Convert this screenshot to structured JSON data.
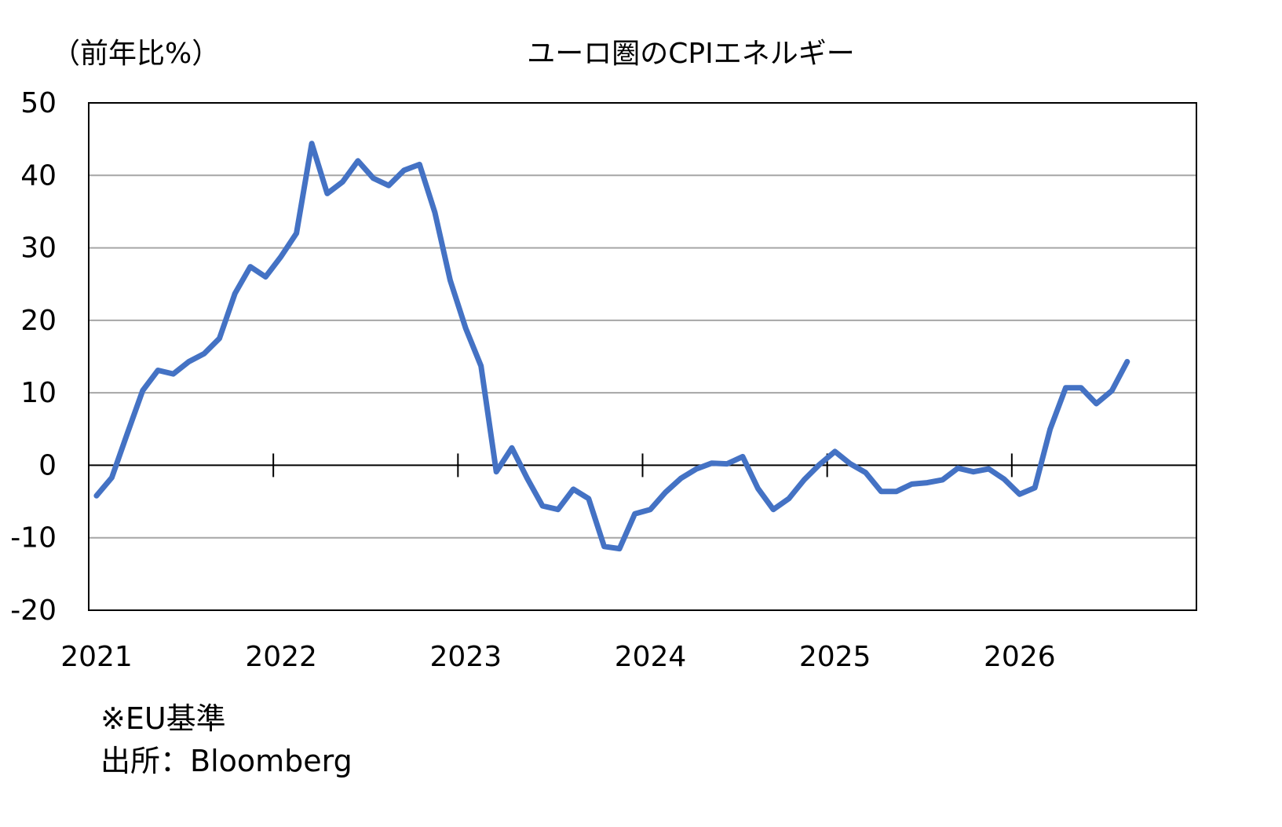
{
  "chart_data": {
    "type": "line",
    "title": "ユーロ圏のCPIエネルギー",
    "ylabel": "（前年比%）",
    "xlabel": "",
    "ylim": [
      -20,
      50
    ],
    "y_ticks": [
      "50",
      "40",
      "30",
      "20",
      "10",
      "0",
      "-10",
      "-20"
    ],
    "x_ticks": [
      "2021",
      "2022",
      "2023",
      "2024",
      "2025",
      "2026"
    ],
    "x_range": [
      2021.0,
      2027.0
    ],
    "grid": true,
    "legend": "none",
    "series": [
      {
        "color": "#4472C4",
        "x": [
          2021.042,
          2021.125,
          2021.208,
          2021.292,
          2021.375,
          2021.458,
          2021.542,
          2021.625,
          2021.708,
          2021.792,
          2021.875,
          2021.958,
          2022.042,
          2022.125,
          2022.208,
          2022.292,
          2022.375,
          2022.458,
          2022.542,
          2022.625,
          2022.708,
          2022.792,
          2022.875,
          2022.958,
          2023.042,
          2023.125,
          2023.208,
          2023.292,
          2023.375,
          2023.458,
          2023.542,
          2023.625,
          2023.708,
          2023.792,
          2023.875,
          2023.958,
          2024.042,
          2024.125,
          2024.208,
          2024.292,
          2024.375,
          2024.458,
          2024.542,
          2024.625,
          2024.708,
          2024.792,
          2024.875,
          2024.958,
          2025.042,
          2025.125,
          2025.208,
          2025.292,
          2025.375,
          2025.458,
          2025.542,
          2025.625,
          2025.708,
          2025.792,
          2025.875,
          2025.958,
          2026.042,
          2026.125,
          2026.208,
          2026.292,
          2026.375,
          2026.458,
          2026.542,
          2026.625
        ],
        "values": [
          -4.2,
          -1.7,
          4.3,
          10.3,
          13.1,
          12.6,
          14.3,
          15.4,
          17.5,
          23.7,
          27.4,
          26.0,
          28.8,
          32.0,
          44.4,
          37.5,
          39.1,
          42.0,
          39.6,
          38.6,
          40.7,
          41.5,
          34.9,
          25.5,
          18.9,
          13.7,
          -0.9,
          2.4,
          -1.8,
          -5.6,
          -6.1,
          -3.3,
          -4.6,
          -11.2,
          -11.5,
          -6.7,
          -6.1,
          -3.7,
          -1.8,
          -0.5,
          0.3,
          0.2,
          1.2,
          -3.2,
          -6.1,
          -4.6,
          -2.0,
          0.1,
          1.9,
          0.2,
          -1.0,
          -3.6,
          -3.6,
          -2.6,
          -2.4,
          -2.0,
          -0.4,
          -0.9,
          -0.5,
          -1.9,
          -4.0,
          -3.1,
          5.0,
          10.7,
          10.7,
          8.5,
          10.3,
          14.3
        ]
      }
    ]
  },
  "footnotes": {
    "basis": "※EU基準",
    "source": "出所：Bloomberg"
  }
}
